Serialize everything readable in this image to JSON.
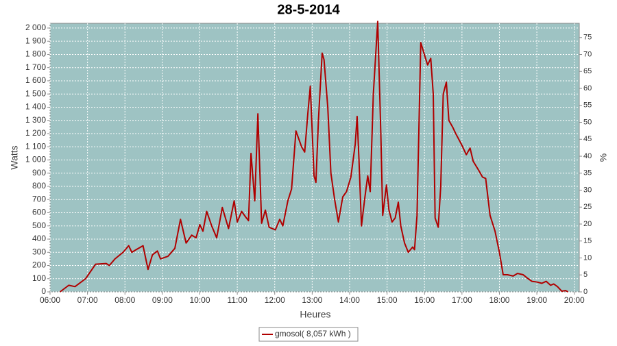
{
  "chart_data": {
    "type": "line",
    "title": "28-5-2014",
    "x_label": "Heures",
    "y_label": "Watts",
    "y2_label": "%",
    "grid": true,
    "legend": "bottom",
    "xlim": [
      "06:00",
      "20:08"
    ],
    "xticks": [
      "06:00",
      "07:00",
      "08:00",
      "09:00",
      "10:00",
      "11:00",
      "12:00",
      "13:00",
      "14:00",
      "15:00",
      "16:00",
      "17:00",
      "18:00",
      "19:00",
      "20:00"
    ],
    "ylim": [
      0,
      2036
    ],
    "yticks": [
      0,
      100,
      200,
      300,
      400,
      500,
      600,
      700,
      800,
      900,
      {
        "value": 1000,
        "label": "1 000"
      },
      {
        "value": 1100,
        "label": "1 100"
      },
      {
        "value": 1200,
        "label": "1 200"
      },
      {
        "value": 1300,
        "label": "1 300"
      },
      {
        "value": 1400,
        "label": "1 400"
      },
      {
        "value": 1500,
        "label": "1 500"
      },
      {
        "value": 1600,
        "label": "1 600"
      },
      {
        "value": 1700,
        "label": "1 700"
      },
      {
        "value": 1800,
        "label": "1 800"
      },
      {
        "value": 1900,
        "label": "1 900"
      },
      {
        "value": 2000,
        "label": "2 000"
      }
    ],
    "y2lim": [
      0,
      79.2
    ],
    "y2ticks": [
      0,
      5,
      10,
      15,
      20,
      25,
      30,
      35,
      40,
      45,
      50,
      55,
      60,
      65,
      70,
      75
    ],
    "x": [
      "06:16",
      "06:30",
      "06:40",
      "06:57",
      "07:13",
      "07:30",
      "07:35",
      "07:44",
      "07:57",
      "08:06",
      "08:11",
      "08:18",
      "08:29",
      "08:37",
      "08:44",
      "08:52",
      "08:57",
      "09:09",
      "09:20",
      "09:29",
      "09:38",
      "09:47",
      "09:54",
      "10:00",
      "10:05",
      "10:11",
      "10:19",
      "10:27",
      "10:36",
      "10:46",
      "10:55",
      "11:00",
      "11:07",
      "11:13",
      "11:18",
      "11:22",
      "11:28",
      "11:33",
      "11:39",
      "11:45",
      "11:51",
      "12:01",
      "12:08",
      "12:13",
      "12:21",
      "12:27",
      "12:34",
      "12:43",
      "12:48",
      "12:53",
      "12:57",
      "13:03",
      "13:06",
      "13:10",
      "13:16",
      "13:19",
      "13:25",
      "13:30",
      "13:36",
      "13:42",
      "13:49",
      "13:55",
      "14:02",
      "14:09",
      "14:12",
      "14:15",
      "14:19",
      "14:24",
      "14:29",
      "14:33",
      "14:38",
      "14:45",
      "14:50",
      "14:53",
      "14:59",
      "15:03",
      "15:08",
      "15:13",
      "15:18",
      "15:22",
      "15:28",
      "15:34",
      "15:41",
      "15:44",
      "15:48",
      "15:54",
      "16:01",
      "16:05",
      "16:10",
      "16:14",
      "16:17",
      "16:22",
      "16:26",
      "16:30",
      "16:35",
      "16:39",
      "16:45",
      "16:50",
      "16:59",
      "17:07",
      "17:13",
      "17:18",
      "17:27",
      "17:33",
      "17:38",
      "17:45",
      "17:53",
      "18:00",
      "18:06",
      "18:13",
      "18:22",
      "18:29",
      "18:38",
      "18:46",
      "18:52",
      "19:00",
      "19:08",
      "19:15",
      "19:22",
      "19:27",
      "19:33",
      "19:40",
      "19:46",
      "19:50"
    ],
    "series": [
      {
        "name": "gmosol( 8,057 kWh )",
        "color": "#b00000",
        "axis": "y",
        "values": [
          0,
          50,
          40,
          100,
          210,
          215,
          200,
          250,
          300,
          350,
          300,
          320,
          350,
          170,
          280,
          310,
          250,
          270,
          330,
          550,
          370,
          430,
          410,
          510,
          460,
          610,
          500,
          410,
          640,
          480,
          690,
          530,
          610,
          570,
          540,
          1050,
          690,
          1350,
          520,
          620,
          490,
          470,
          550,
          500,
          690,
          780,
          1220,
          1100,
          1060,
          1350,
          1560,
          880,
          830,
          1300,
          1810,
          1760,
          1400,
          900,
          700,
          530,
          720,
          760,
          870,
          1120,
          1330,
          1000,
          500,
          700,
          880,
          760,
          1500,
          2050,
          1200,
          580,
          810,
          620,
          530,
          560,
          680,
          500,
          370,
          300,
          340,
          320,
          580,
          1890,
          1780,
          1720,
          1770,
          1500,
          560,
          490,
          800,
          1500,
          1590,
          1300,
          1250,
          1200,
          1120,
          1040,
          1090,
          990,
          920,
          870,
          860,
          580,
          460,
          300,
          130,
          130,
          120,
          140,
          130,
          100,
          80,
          75,
          65,
          80,
          50,
          60,
          40,
          5,
          10,
          0
        ]
      }
    ]
  }
}
